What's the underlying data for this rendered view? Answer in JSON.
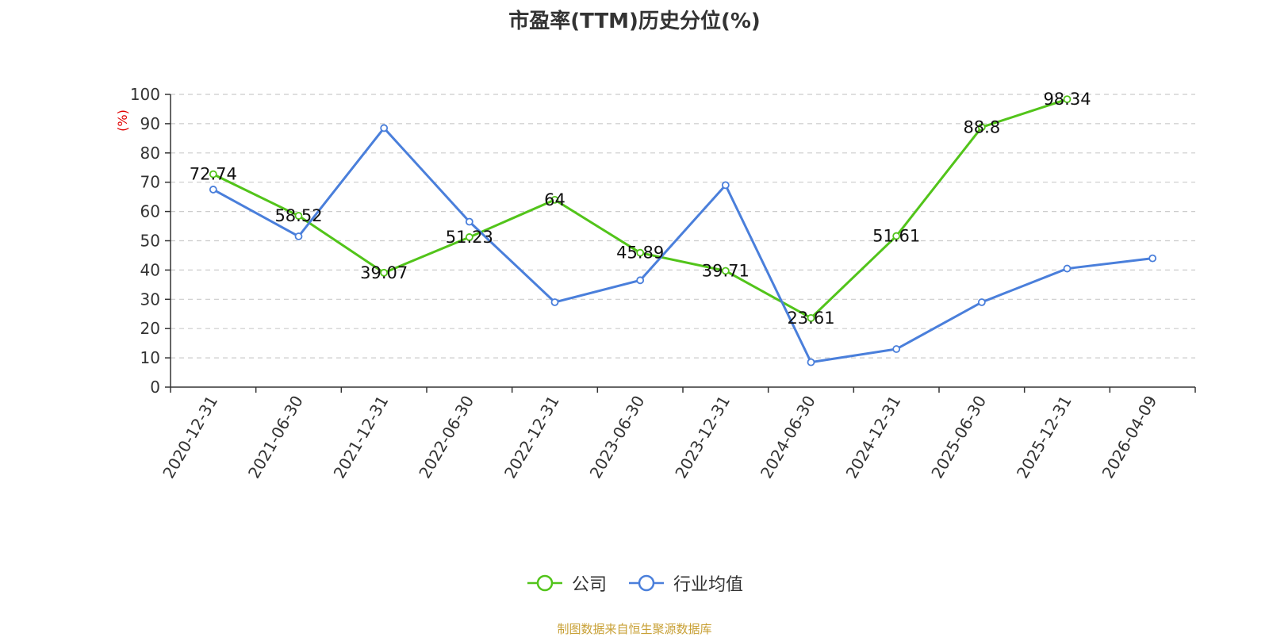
{
  "chart_data": {
    "type": "line",
    "title": "市盈率(TTM)历史分位(%)",
    "ylabel": "(%)",
    "xlabel": "",
    "ylim": [
      0,
      100
    ],
    "yticks": [
      0,
      10,
      20,
      30,
      40,
      50,
      60,
      70,
      80,
      90,
      100
    ],
    "grid": true,
    "legend_position": "bottom-center",
    "categories": [
      "2020-12-31",
      "2021-06-30",
      "2021-12-31",
      "2022-06-30",
      "2022-12-31",
      "2023-06-30",
      "2023-12-31",
      "2024-06-30",
      "2024-12-31",
      "2025-06-30",
      "2025-12-31",
      "2026-04-09"
    ],
    "series": [
      {
        "name": "公司",
        "color": "#52c41a",
        "show_labels": true,
        "values": [
          72.74,
          58.52,
          39.07,
          51.23,
          64,
          45.89,
          39.71,
          23.61,
          51.61,
          88.8,
          98.34,
          null
        ]
      },
      {
        "name": "行业均值",
        "color": "#4a7fdb",
        "show_labels": false,
        "values": [
          67.5,
          51.5,
          88.5,
          56.5,
          29,
          36.5,
          69,
          8.5,
          13,
          29,
          40.5,
          44
        ]
      }
    ]
  },
  "source_text": "制图数据来自恒生聚源数据库"
}
